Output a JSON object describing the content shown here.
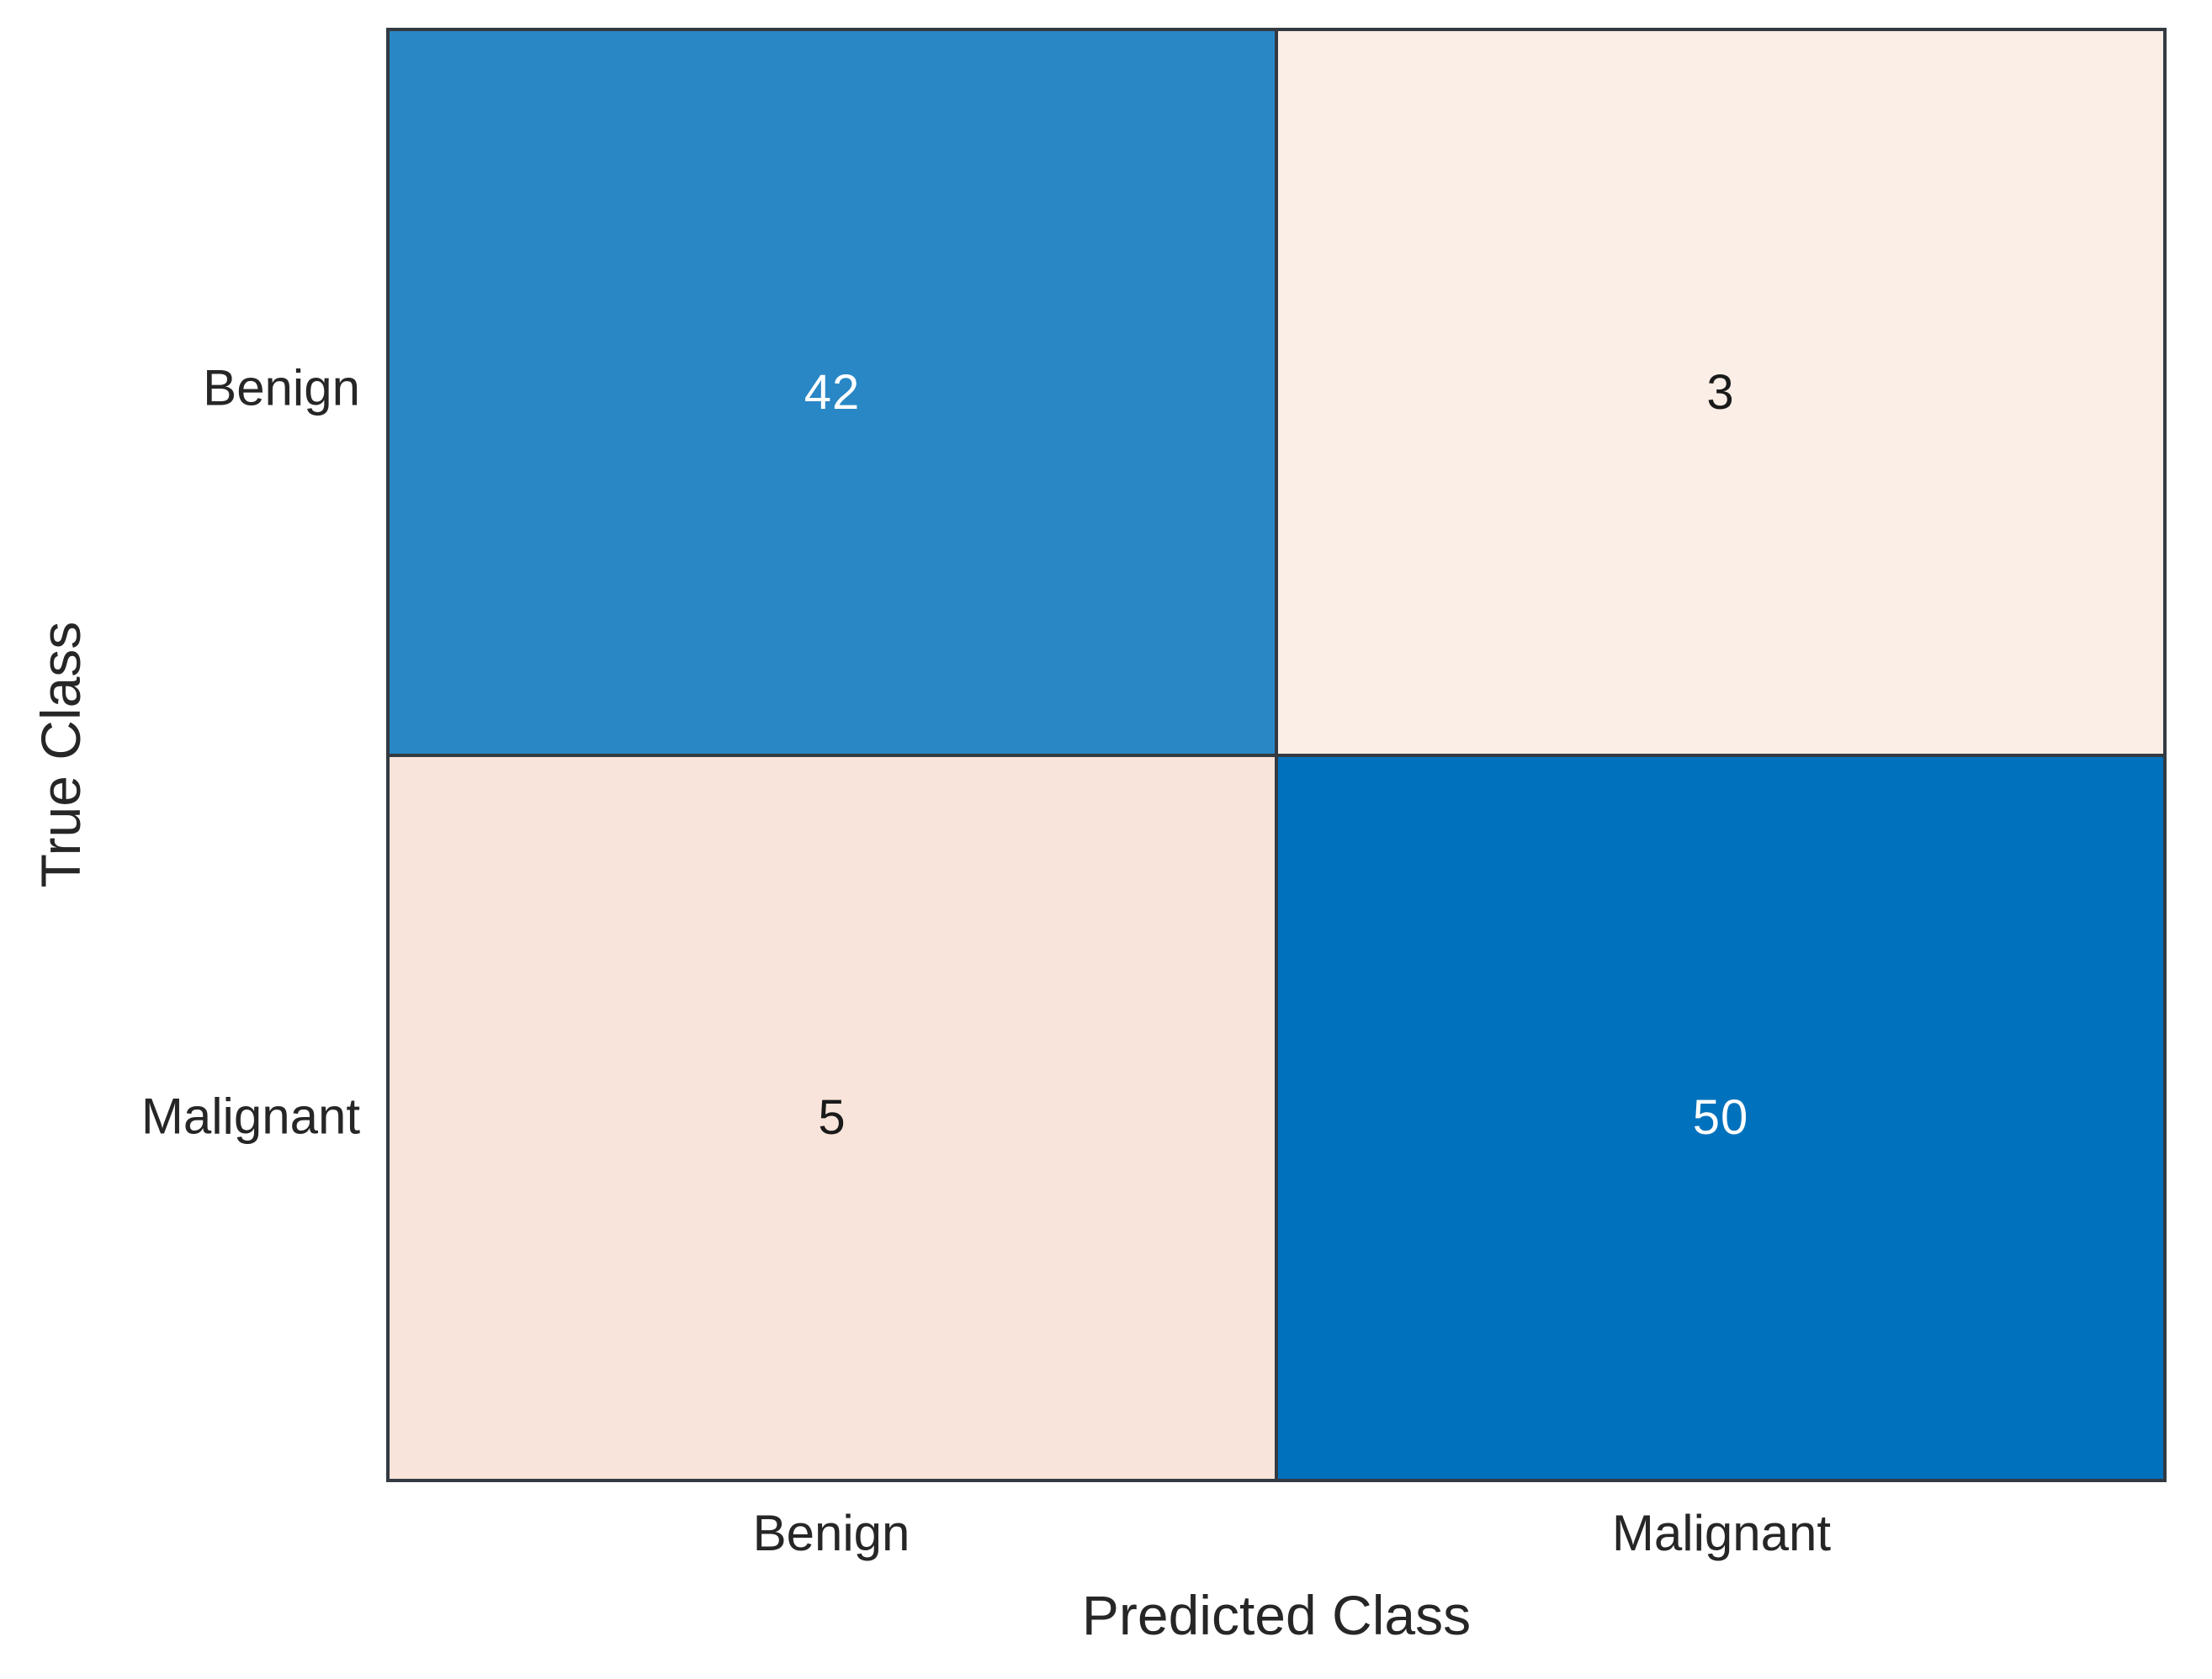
{
  "chart_data": {
    "type": "heatmap",
    "subtype": "confusion-matrix",
    "title": "",
    "xlabel": "Predicted Class",
    "ylabel": "True Class",
    "x_categories": [
      "Benign",
      "Malignant"
    ],
    "y_categories": [
      "Benign",
      "Malignant"
    ],
    "matrix": [
      {
        "true_class": "Benign",
        "values": [
          42,
          3
        ]
      },
      {
        "true_class": "Malignant",
        "values": [
          5,
          50
        ]
      }
    ],
    "legend": "none",
    "grid": "solid dark cell borders",
    "colors": {
      "diagonal_high": "#0072bd",
      "diagonal_mid": "#2987c6",
      "off_diagonal_low": "#fbeee7",
      "off_diagonal_mid": "#f8e4da",
      "grid_line": "#333a41",
      "tick_text": "#262626",
      "text_on_dark": "#ffffff",
      "text_on_light": "#1a1a1a"
    }
  },
  "labels": {
    "y_axis": "True Class",
    "x_axis": "Predicted Class",
    "row_ticks": [
      "Benign",
      "Malignant"
    ],
    "col_ticks": [
      "Benign",
      "Malignant"
    ]
  },
  "cells": [
    {
      "row": "Benign",
      "col": "Benign",
      "value": "42",
      "bg": "#2987c6",
      "fg": "#ffffff"
    },
    {
      "row": "Benign",
      "col": "Malignant",
      "value": "3",
      "bg": "#fbeee7",
      "fg": "#1a1a1a"
    },
    {
      "row": "Malignant",
      "col": "Benign",
      "value": "5",
      "bg": "#f8e4da",
      "fg": "#1a1a1a"
    },
    {
      "row": "Malignant",
      "col": "Malignant",
      "value": "50",
      "bg": "#0072bd",
      "fg": "#ffffff"
    }
  ]
}
